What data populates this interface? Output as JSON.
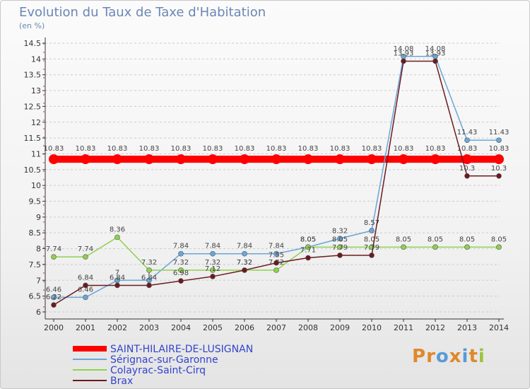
{
  "title": "Evolution du Taux de Taxe d'Habitation",
  "subtitle": "(en %)",
  "logo": "Proxiti",
  "colors": {
    "axis": "#333333",
    "grid": "#cccccc",
    "logo_letters": [
      "#e0882a",
      "#e0882a",
      "#5a9ad6",
      "#e0882a",
      "#5a9ad6",
      "#e0882a",
      "#9cc43a"
    ]
  },
  "chart_data": {
    "type": "line",
    "x": [
      "2000",
      "2001",
      "2002",
      "2003",
      "2004",
      "2005",
      "2006",
      "2007",
      "2008",
      "2009",
      "2010",
      "2011",
      "2012",
      "2013",
      "2014"
    ],
    "ylim": [
      6,
      14.5
    ],
    "yticks": [
      "6",
      "6.5",
      "7",
      "7.5",
      "8",
      "8.5",
      "9",
      "9.5",
      "10",
      "10.5",
      "11",
      "11.5",
      "12",
      "12.5",
      "13",
      "13.5",
      "14",
      "14.5"
    ],
    "grid": "horizontal dashed",
    "legend_position": "bottom-left",
    "series": [
      {
        "name": "SAINT-HILAIRE-DE-LUSIGNAN",
        "color": "#ff0000",
        "values": [
          10.83,
          10.83,
          10.83,
          10.83,
          10.83,
          10.83,
          10.83,
          10.83,
          10.83,
          10.83,
          10.83,
          10.83,
          10.83,
          10.83,
          10.83
        ],
        "labels": [
          "10.83",
          "10.83",
          "10.83",
          "10.83",
          "10.83",
          "10.83",
          "10.83",
          "10.83",
          "10.83",
          "10.83",
          "10.83",
          "10.83",
          "10.83",
          "10.83",
          "10.83"
        ]
      },
      {
        "name": "Sérignac-sur-Garonne",
        "color": "#6aa6d8",
        "values": [
          6.46,
          6.46,
          7,
          7,
          7.84,
          7.84,
          7.84,
          7.84,
          8.05,
          8.32,
          8.57,
          14.08,
          14.08,
          11.43,
          11.43
        ],
        "labels": [
          "6.46",
          "6.46",
          "7",
          "7",
          "7.84",
          "7.84",
          "7.84",
          "7.84",
          "8.05",
          "8.32",
          "8.57",
          "14.08",
          "14.08",
          "11.43",
          "11.43"
        ]
      },
      {
        "name": "Colayrac-Saint-Cirq",
        "color": "#8fd14f",
        "values": [
          7.74,
          7.74,
          8.36,
          7.32,
          7.32,
          7.32,
          7.32,
          7.32,
          8.05,
          8.05,
          8.05,
          8.05,
          8.05,
          8.05,
          8.05
        ],
        "labels": [
          "7.74",
          "7.74",
          "8.36",
          "7.32",
          "7.32",
          "7.32",
          "7.32",
          "7.32",
          "8.05",
          "8.05",
          "8.05",
          "8.05",
          "8.05",
          "8.05",
          "8.05"
        ]
      },
      {
        "name": "Brax",
        "color": "#6b1a1f",
        "values": [
          6.22,
          6.84,
          6.84,
          6.84,
          6.98,
          7.12,
          7.32,
          7.55,
          7.71,
          7.79,
          7.79,
          13.93,
          13.93,
          10.3,
          10.3
        ],
        "labels": [
          "6.22",
          "6.84",
          "6.84",
          "6.84",
          "6.98",
          "7.12",
          "7.32",
          "7.55",
          "7.71",
          "7.79",
          "7.79",
          "13.93",
          "13.93",
          "10.3",
          "10.3"
        ]
      }
    ]
  }
}
